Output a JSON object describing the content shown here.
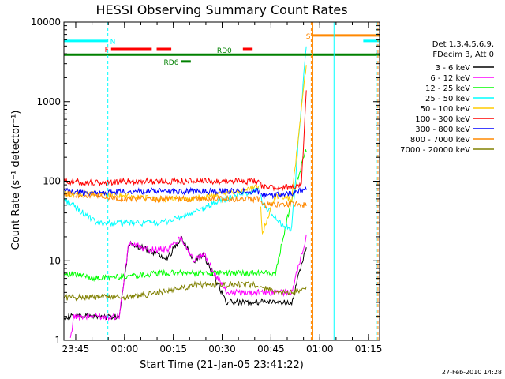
{
  "chart_data": {
    "type": "line",
    "title": "HESSI Observing Summary Count Rates",
    "xlabel": "Start Time (21-Jan-05 23:41:22)",
    "ylabel": "Count Rate (s⁻¹ detector⁻¹)",
    "yscale": "log",
    "ylim": [
      1,
      10000
    ],
    "xlim_minutes_after_start": [
      0,
      97
    ],
    "x_tick_labels": [
      "23:45",
      "00:00",
      "00:15",
      "00:30",
      "00:45",
      "01:00",
      "01:15"
    ],
    "x_tick_minutes": [
      3.63,
      18.63,
      33.63,
      48.63,
      63.63,
      78.63,
      93.63
    ],
    "y_tick_labels": [
      "1",
      "10",
      "100",
      "1000",
      "10000"
    ],
    "y_tick_values": [
      1,
      10,
      100,
      1000,
      10000
    ],
    "legend_header": [
      "Det 1,3,4,5,6,9,",
      "FDecim 3, Att 0"
    ],
    "legend_position": "right",
    "timestamp": "27-Feb-2010 14:28",
    "series": [
      {
        "name": "3 - 6 keV",
        "color": "#000000",
        "x": [
          0,
          10,
          17,
          20,
          25,
          32,
          36,
          40,
          43,
          50,
          55,
          60,
          65,
          70,
          74.5
        ],
        "y": [
          2,
          2,
          2,
          17,
          14,
          11,
          20,
          10,
          12,
          3,
          3,
          3,
          3,
          3,
          15
        ],
        "active": [
          [
            0,
            60
          ],
          [
            60.5,
            74.5
          ]
        ]
      },
      {
        "name": "6 - 12 keV",
        "color": "#ff00ff",
        "x": [
          2,
          3,
          10,
          17,
          20,
          25,
          32,
          36,
          40,
          43,
          50,
          55,
          60,
          65,
          70,
          74.5
        ],
        "y": [
          1,
          2,
          2,
          2,
          17,
          14,
          14,
          20,
          10,
          12,
          4,
          4,
          4,
          4,
          4,
          20
        ],
        "active": [
          [
            2,
            60
          ],
          [
            60.5,
            74.5
          ]
        ]
      },
      {
        "name": "12 - 25 keV",
        "color": "#00ff00",
        "x": [
          0,
          10,
          20,
          30,
          40,
          50,
          56,
          62,
          65,
          70,
          74.5
        ],
        "y": [
          7,
          6,
          6.5,
          7,
          7,
          7,
          7,
          7,
          7,
          60,
          250
        ],
        "active": [
          [
            0,
            60
          ],
          [
            60.5,
            74.5
          ]
        ]
      },
      {
        "name": "25 - 50 keV",
        "color": "#00ffff",
        "x": [
          0,
          10,
          20,
          30,
          40,
          47,
          55,
          60,
          61,
          63,
          66,
          70,
          72,
          74.5
        ],
        "y": [
          60,
          30,
          30,
          30,
          40,
          55,
          70,
          80,
          50,
          45,
          30,
          25,
          300,
          5000
        ],
        "active": [
          [
            0,
            60
          ],
          [
            60.5,
            74.5
          ]
        ]
      },
      {
        "name": "50 - 100 keV",
        "color": "#ffcc00",
        "x": [
          0,
          10,
          20,
          30,
          40,
          50,
          60,
          61,
          65,
          70,
          74.5
        ],
        "y": [
          70,
          70,
          65,
          60,
          60,
          70,
          85,
          23,
          65,
          60,
          3000
        ],
        "active": [
          [
            0,
            60
          ],
          [
            60.5,
            74.5
          ]
        ]
      },
      {
        "name": "100 - 300 keV",
        "color": "#ff0000",
        "x": [
          0,
          10,
          20,
          30,
          40,
          50,
          60,
          61,
          70,
          73,
          74.5
        ],
        "y": [
          100,
          95,
          100,
          100,
          100,
          100,
          100,
          85,
          85,
          90,
          1500
        ],
        "active": [
          [
            0,
            60
          ],
          [
            60.5,
            74.5
          ]
        ]
      },
      {
        "name": "300 - 800 keV",
        "color": "#0000ff",
        "x": [
          0,
          10,
          20,
          30,
          40,
          50,
          60,
          61,
          70,
          74.5
        ],
        "y": [
          75,
          70,
          75,
          75,
          75,
          75,
          75,
          65,
          70,
          80
        ],
        "active": [
          [
            0,
            60
          ],
          [
            60.5,
            74.5
          ]
        ]
      },
      {
        "name": "800 - 7000 keV",
        "color": "#ff8800",
        "x": [
          0,
          10,
          20,
          30,
          40,
          50,
          60,
          61,
          70,
          74.5
        ],
        "y": [
          70,
          65,
          60,
          60,
          60,
          60,
          60,
          50,
          52,
          50
        ],
        "active": [
          [
            0,
            60
          ],
          [
            60.5,
            74.5
          ]
        ]
      },
      {
        "name": "7000 - 20000 keV",
        "color": "#808000",
        "x": [
          0,
          10,
          20,
          30,
          40,
          50,
          60,
          65,
          70,
          74.5
        ],
        "y": [
          3.5,
          3.5,
          3.5,
          4,
          5,
          5,
          5,
          4,
          4,
          4.5
        ],
        "active": [
          [
            0,
            60
          ],
          [
            60.5,
            74.5
          ]
        ]
      }
    ],
    "flags": [
      {
        "label": "N",
        "color": "#00ffff",
        "y": 5800,
        "segments": [
          [
            0,
            13.5
          ],
          [
            92,
            97
          ]
        ]
      },
      {
        "label": "F",
        "color": "#ff0000",
        "y": 4600,
        "segments": [
          [
            14.5,
            27
          ],
          [
            28.5,
            33
          ],
          [
            55,
            58
          ]
        ]
      },
      {
        "label": "RD0",
        "color": "#008000",
        "y": 3900,
        "segments": [
          [
            0,
            97
          ]
        ]
      },
      {
        "label": "RD6",
        "color": "#008000",
        "y": 3200,
        "segments": [
          [
            36,
            39
          ]
        ]
      },
      {
        "label": "S",
        "color": "#ff8800",
        "y": 6800,
        "segments": [
          [
            76.5,
            97
          ]
        ]
      }
    ],
    "markers": [
      {
        "minute": 0,
        "color": "#00ffff",
        "style": "solid"
      },
      {
        "minute": 13.5,
        "color": "#00ffff",
        "style": "dashed"
      },
      {
        "minute": 76,
        "color": "#ff8800",
        "style": "dashed"
      },
      {
        "minute": 76.5,
        "color": "#ff8800",
        "style": "solid"
      },
      {
        "minute": 83,
        "color": "#00ffff",
        "style": "solid"
      },
      {
        "minute": 96,
        "color": "#00ffff",
        "style": "dashed"
      },
      {
        "minute": 96.5,
        "color": "#ff8800",
        "style": "dashed"
      }
    ]
  }
}
